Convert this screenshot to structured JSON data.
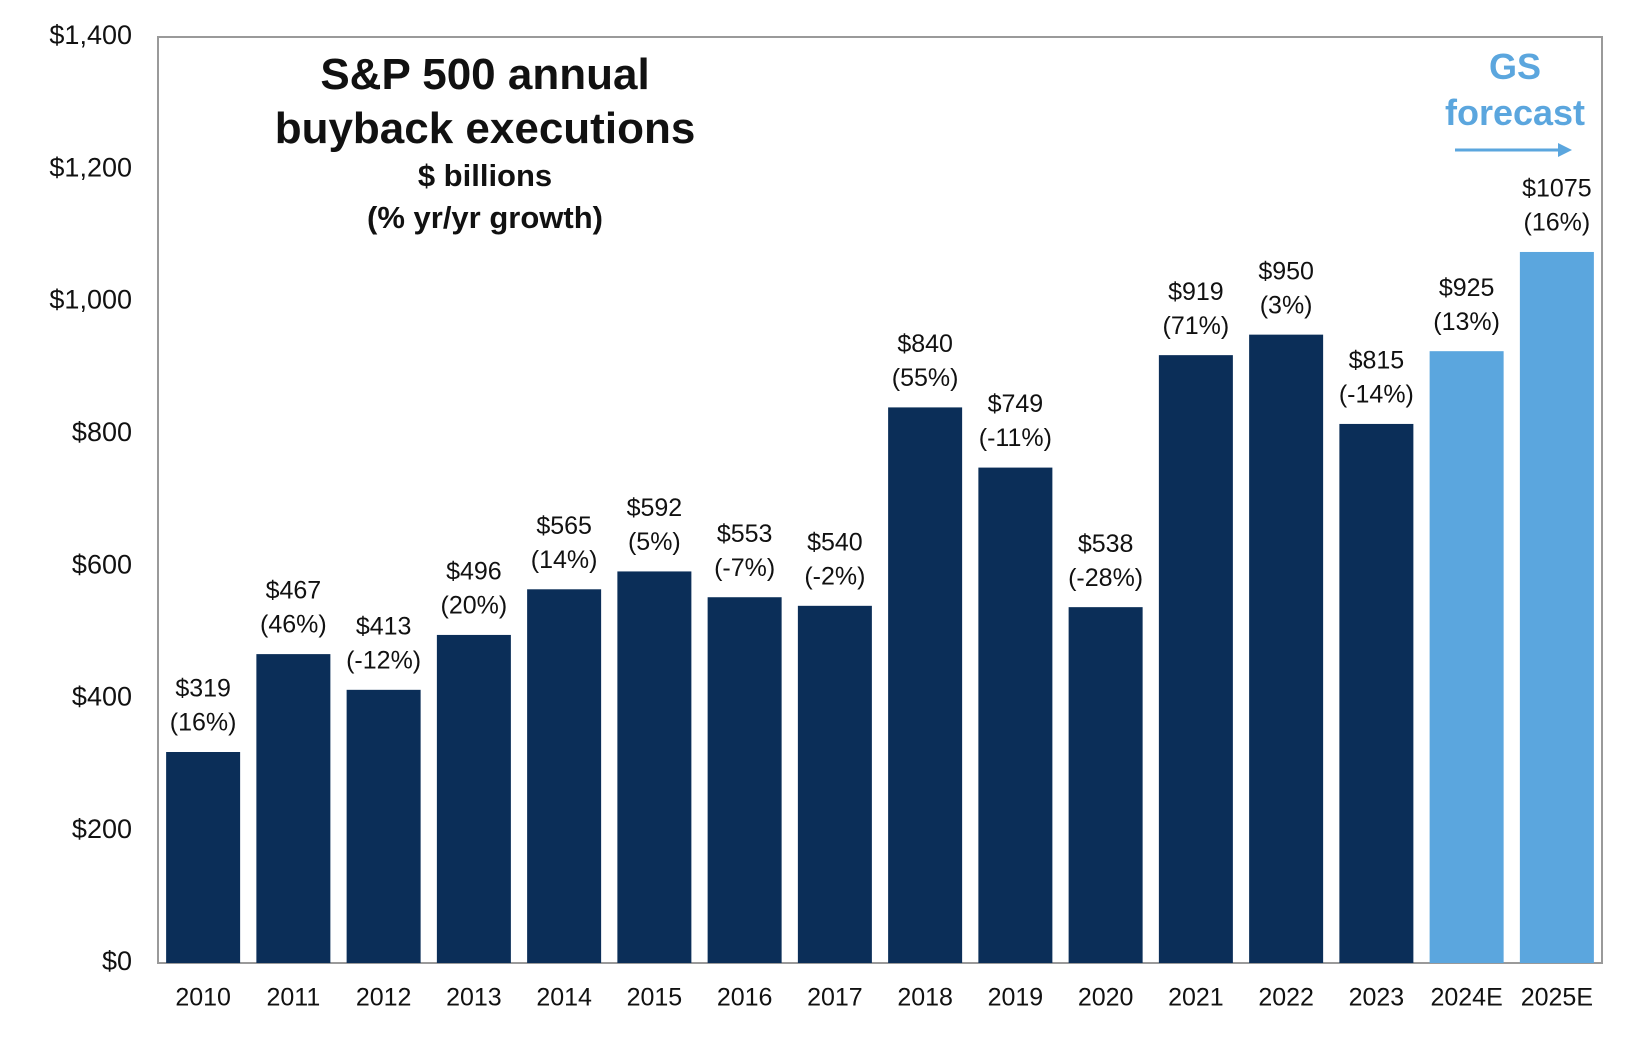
{
  "chart_data": {
    "type": "bar",
    "title": "S&P 500 annual buyback executions",
    "subtitle": "$ billions",
    "note": "(% yr/yr growth)",
    "annotation": "GS forecast",
    "categories": [
      "2010",
      "2011",
      "2012",
      "2013",
      "2014",
      "2015",
      "2016",
      "2017",
      "2018",
      "2019",
      "2020",
      "2021",
      "2022",
      "2023",
      "2024E",
      "2025E"
    ],
    "values": [
      319,
      467,
      413,
      496,
      565,
      592,
      553,
      540,
      840,
      749,
      538,
      919,
      950,
      815,
      925,
      1075
    ],
    "value_labels": [
      "$319",
      "$467",
      "$413",
      "$496",
      "$565",
      "$592",
      "$553",
      "$540",
      "$840",
      "$749",
      "$538",
      "$919",
      "$950",
      "$815",
      "$925",
      "$1075"
    ],
    "growth": [
      16,
      46,
      -12,
      20,
      14,
      5,
      -7,
      -2,
      55,
      -11,
      -28,
      71,
      3,
      -14,
      13,
      16
    ],
    "growth_labels": [
      "(16%)",
      "(46%)",
      "(-12%)",
      "(20%)",
      "(14%)",
      "(5%)",
      "(-7%)",
      "(-2%)",
      "(55%)",
      "(-11%)",
      "(-28%)",
      "(71%)",
      "(3%)",
      "(-14%)",
      "(13%)",
      "(16%)"
    ],
    "colors": [
      "#0b2e58",
      "#0b2e58",
      "#0b2e58",
      "#0b2e58",
      "#0b2e58",
      "#0b2e58",
      "#0b2e58",
      "#0b2e58",
      "#0b2e58",
      "#0b2e58",
      "#0b2e58",
      "#0b2e58",
      "#0b2e58",
      "#0b2e58",
      "#5ba6de",
      "#5ba6de"
    ],
    "ylim": [
      0,
      1400
    ],
    "yticks": [
      {
        "value": 0,
        "label": "$0"
      },
      {
        "value": 200,
        "label": "$200"
      },
      {
        "value": 400,
        "label": "$400"
      },
      {
        "value": 600,
        "label": "$600"
      },
      {
        "value": 800,
        "label": "$800"
      },
      {
        "value": 1000,
        "label": "$1,000"
      },
      {
        "value": 1200,
        "label": "$1,200"
      },
      {
        "value": 1400,
        "label": "$1,400"
      }
    ],
    "grid": false
  }
}
